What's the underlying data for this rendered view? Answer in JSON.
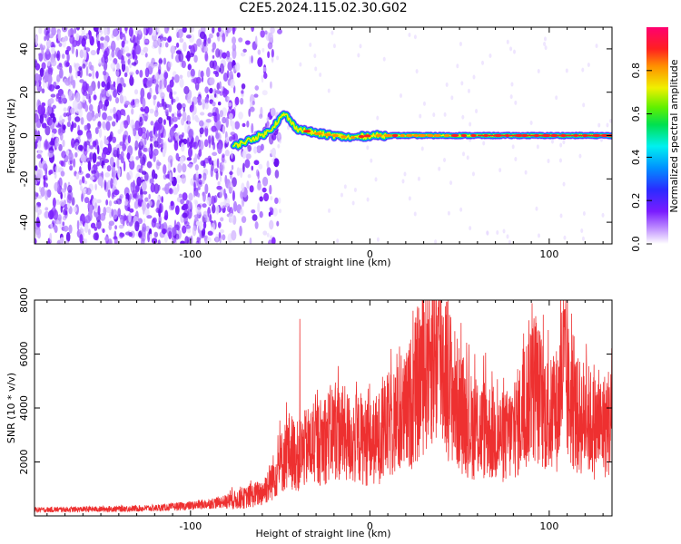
{
  "title": "C2E5.2024.115.02.30.G02",
  "colors": {
    "snr_line": "#ee3030",
    "spectrogram_noise": "#7a1cff",
    "frame": "#000000"
  },
  "chart_data": [
    {
      "type": "heatmap",
      "xlabel": "Height of straight line (km)",
      "ylabel": "Frequency (Hz)",
      "xlim": [
        -187,
        135
      ],
      "ylim": [
        -50,
        50
      ],
      "xticks": [
        -100,
        0,
        100
      ],
      "yticks": [
        -40,
        -20,
        0,
        20,
        40
      ],
      "grid": false,
      "colorbar": {
        "label": "Normalized spectral amplitude",
        "range": [
          0,
          1
        ],
        "ticks": [
          0.0,
          0.2,
          0.4,
          0.6,
          0.8
        ],
        "colormap": "rainbow (white-purple-blue-cyan-green-yellow-red-magenta)"
      },
      "signal_trace": {
        "x": [
          -76,
          -70,
          -64,
          -58,
          -54,
          -50,
          -47,
          -44,
          -40,
          -35,
          -30,
          -20,
          -10,
          0,
          20,
          50,
          80,
          110,
          135
        ],
        "y": [
          -5,
          -3,
          -1,
          1,
          4,
          8,
          10,
          6,
          3,
          2,
          1,
          0,
          -1,
          0,
          0,
          0,
          0,
          0,
          0
        ]
      },
      "noise_region_x": [
        -187,
        -60
      ]
    },
    {
      "type": "line",
      "xlabel": "Height of straight line (km)",
      "ylabel": "SNR (10 * v/v)",
      "xlim": [
        -187,
        135
      ],
      "ylim": [
        0,
        8000
      ],
      "xticks": [
        -100,
        0,
        100
      ],
      "yticks": [
        2000,
        4000,
        6000,
        8000
      ],
      "grid": false,
      "series": [
        {
          "envelope_x": [
            -187,
            -150,
            -120,
            -100,
            -90,
            -80,
            -70,
            -60,
            -55,
            -50,
            -45,
            -40,
            -35,
            -30,
            -25,
            -20,
            -15,
            -10,
            -5,
            0,
            5,
            10,
            15,
            20,
            25,
            30,
            35,
            38,
            40,
            45,
            50,
            55,
            60,
            65,
            70,
            75,
            80,
            85,
            88,
            90,
            95,
            100,
            105,
            108,
            110,
            115,
            120,
            125,
            130,
            135
          ],
          "envelope_y": [
            250,
            280,
            320,
            420,
            500,
            600,
            750,
            1000,
            1500,
            2200,
            2800,
            2500,
            2900,
            3000,
            3300,
            3600,
            3500,
            3200,
            3300,
            3000,
            3300,
            3800,
            4000,
            4300,
            5200,
            6300,
            7200,
            6800,
            6700,
            5500,
            4500,
            3900,
            3600,
            3700,
            3400,
            3300,
            3600,
            4300,
            5000,
            5700,
            5000,
            4100,
            4600,
            6400,
            5300,
            4200,
            4200,
            3800,
            3800,
            4100
          ],
          "spikes": [
            {
              "x": -39,
              "y": 7300
            },
            {
              "x": 37,
              "y": 8000
            },
            {
              "x": 108,
              "y": 8000
            },
            {
              "x": 90,
              "y": 6700
            }
          ]
        }
      ]
    }
  ]
}
